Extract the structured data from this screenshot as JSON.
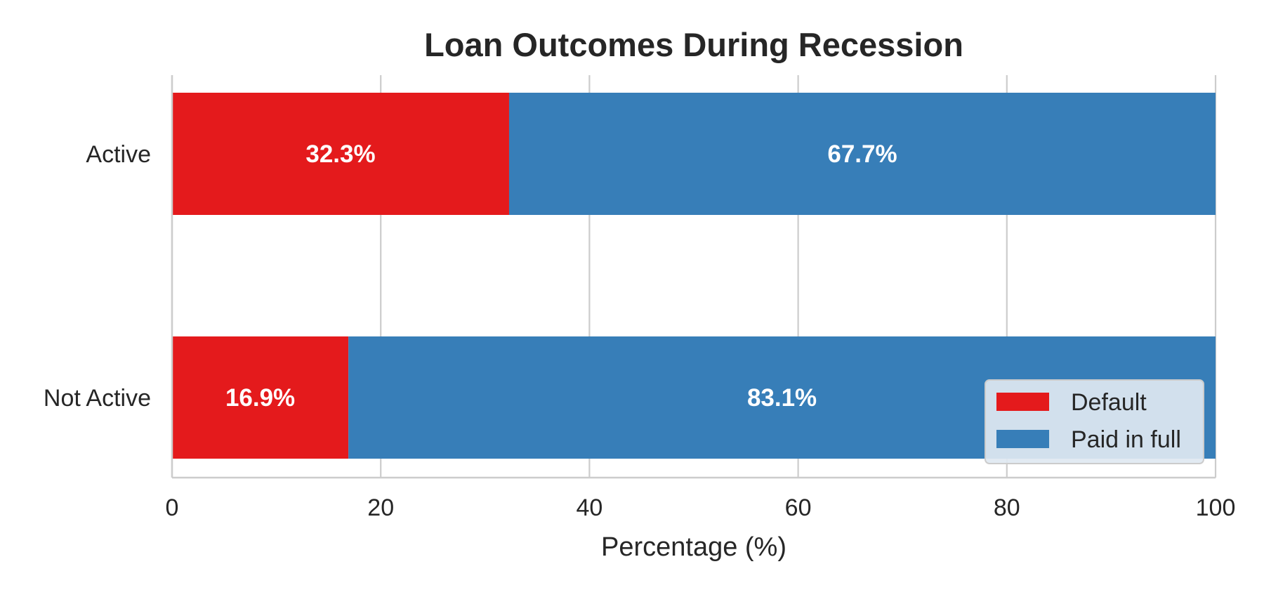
{
  "chart_data": {
    "type": "bar",
    "orientation": "horizontal",
    "stacked": true,
    "title": "Loan Outcomes During Recession",
    "xlabel": "Percentage (%)",
    "ylabel": "",
    "xlim": [
      0,
      100
    ],
    "x_ticks": [
      0,
      20,
      40,
      60,
      80,
      100
    ],
    "grid": "vertical",
    "legend_placement": "lower-right",
    "categories": [
      "Active",
      "Not Active"
    ],
    "series": [
      {
        "name": "Default",
        "color": "#e41a1c",
        "values": [
          32.3,
          16.9
        ],
        "labels": [
          "32.3%",
          "16.9%"
        ]
      },
      {
        "name": "Paid in full",
        "color": "#377eb8",
        "values": [
          67.7,
          83.1
        ],
        "labels": [
          "67.7%",
          "83.1%"
        ]
      }
    ]
  }
}
